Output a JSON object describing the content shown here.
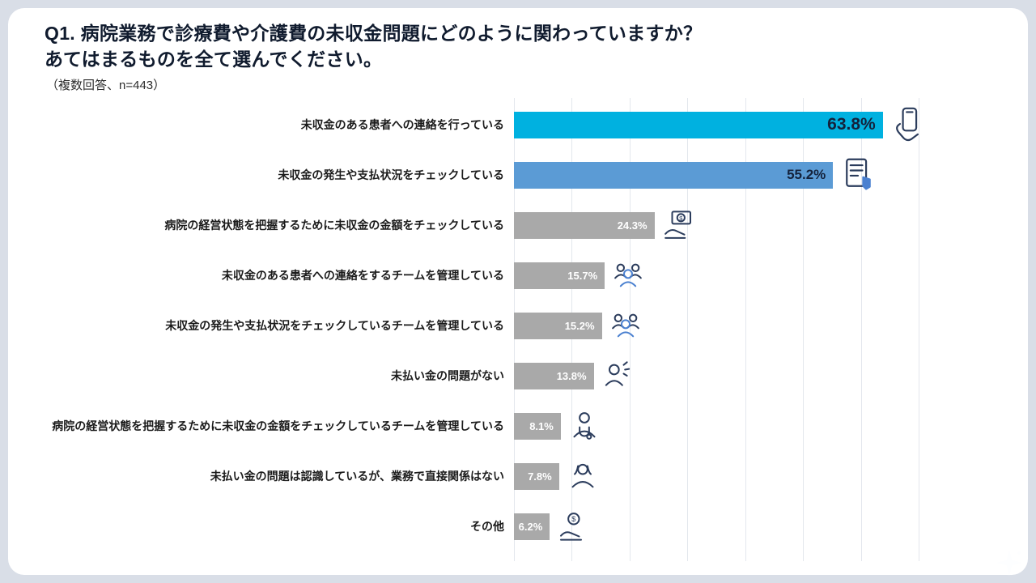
{
  "page": {
    "background": "#d9dee7",
    "card_background": "#ffffff"
  },
  "header": {
    "title_line1": "Q1. 病院業務で診療費や介護費の未収金問題にどのように関わっていますか？",
    "title_line2": "あてはまるものを全て選んでください。",
    "note": "（複数回答、n=443）"
  },
  "chart_data": {
    "type": "bar",
    "orientation": "horizontal",
    "title": "Q1. 病院業務で診療費や介護費の未収金問題にどのように関わっていますか？あてはまるものを全て選んでください。",
    "note": "（複数回答、n=443）",
    "n": 443,
    "multiple_answer": true,
    "xlim": [
      0,
      70
    ],
    "gridline_step_percent": 10,
    "grid": true,
    "legend": "none",
    "categories": [
      "未収金のある患者への連絡を行っている",
      "未収金の発生や支払状況をチェックしている",
      "病院の経営状態を把握するために未収金の金額をチェックしている",
      "未収金のある患者への連絡をするチームを管理している",
      "未収金の発生や支払状況をチェックしているチームを管理している",
      "未払い金の問題がない",
      "病院の経営状態を把握するために未収金の金額をチェックしているチームを管理している",
      "未払い金の問題は認識しているが、業務で直接関係はない",
      "その他"
    ],
    "values": [
      63.8,
      55.2,
      24.3,
      15.7,
      15.2,
      13.8,
      8.1,
      7.8,
      6.2
    ],
    "value_labels": [
      "63.8%",
      "55.2%",
      "24.3%",
      "15.7%",
      "15.2%",
      "13.8%",
      "8.1%",
      "7.8%",
      "6.2%"
    ],
    "bar_colors": [
      "#00b1e0",
      "#5b9bd5",
      "#a9a9a9",
      "#a9a9a9",
      "#a9a9a9",
      "#a9a9a9",
      "#a9a9a9",
      "#a9a9a9",
      "#a9a9a9"
    ],
    "value_text_colors": [
      "#14223c",
      "#14223c",
      "#ffffff",
      "#ffffff",
      "#ffffff",
      "#ffffff",
      "#ffffff",
      "#ffffff",
      "#ffffff"
    ],
    "icons": [
      "smartphone-hand-icon",
      "document-check-icon",
      "card-hand-icon",
      "team-icon",
      "team-icon",
      "person-talking-icon",
      "doctor-icon",
      "businesswoman-icon",
      "coin-hand-icon"
    ]
  },
  "decor": {
    "sparkle_icon": "sparkle-icon",
    "icon_color": "#2b3c5c",
    "icon_accent": "#4a80d0",
    "gridline_color": "#e3e7ed",
    "sparkle_color": "#fdfeff"
  }
}
